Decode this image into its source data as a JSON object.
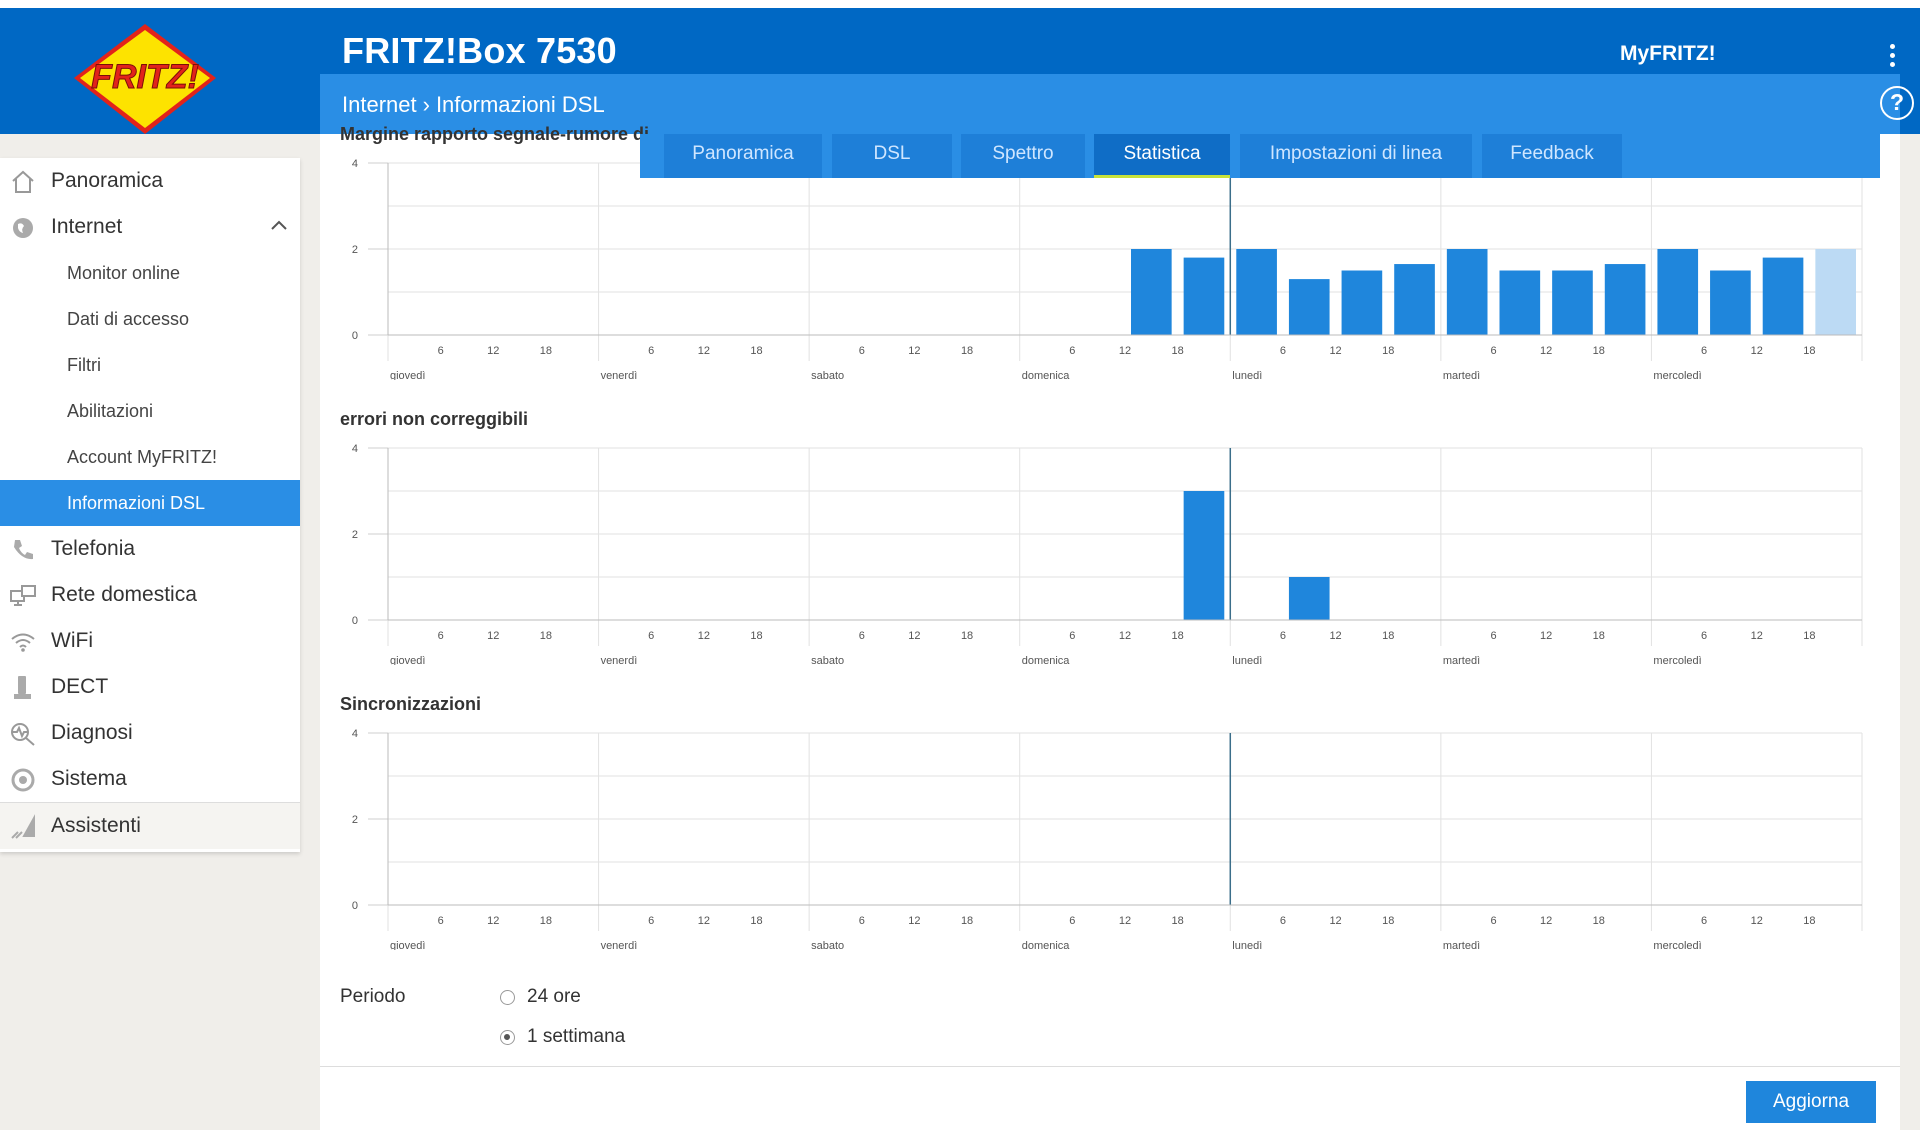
{
  "header": {
    "logo_text": "FRITZ!",
    "product": "FRITZ!Box 7530",
    "myfritz": "MyFRITZ!"
  },
  "breadcrumb": {
    "parent": "Internet",
    "current": "Informazioni DSL"
  },
  "help_label": "?",
  "sidebar": {
    "items": [
      {
        "label": "Panoramica",
        "icon": "home-icon"
      },
      {
        "label": "Internet",
        "icon": "globe-icon",
        "open": true
      },
      {
        "label": "Telefonia",
        "icon": "phone-icon"
      },
      {
        "label": "Rete domestica",
        "icon": "network-icon"
      },
      {
        "label": "WiFi",
        "icon": "wifi-icon"
      },
      {
        "label": "DECT",
        "icon": "dect-icon"
      },
      {
        "label": "Diagnosi",
        "icon": "diagnosis-icon"
      },
      {
        "label": "Sistema",
        "icon": "system-icon"
      },
      {
        "label": "Assistenti",
        "icon": "wizard-icon"
      }
    ],
    "sub_items": [
      "Monitor online",
      "Dati di accesso",
      "Filtri",
      "Abilitazioni",
      "Account MyFRITZ!",
      "Informazioni DSL"
    ],
    "active_sub": "Informazioni DSL"
  },
  "tabs": [
    {
      "label": "Panoramica"
    },
    {
      "label": "DSL"
    },
    {
      "label": "Spettro"
    },
    {
      "label": "Statistica",
      "active": true
    },
    {
      "label": "Impostazioni di linea"
    },
    {
      "label": "Feedback"
    }
  ],
  "chart_data": [
    {
      "type": "bar",
      "title": "Margine rapporto segnale-rumore di",
      "ylim": [
        0,
        4
      ],
      "yticks": [
        0,
        2,
        4
      ],
      "x_hour_ticks": [
        "6",
        "12",
        "18"
      ],
      "days": [
        "giovedì",
        "venerdì",
        "sabato",
        "domenica",
        "lunedì",
        "martedì",
        "mercoledì"
      ],
      "bars": [
        {
          "slot": 14,
          "value": 2,
          "color": "#1f86dc"
        },
        {
          "slot": 15,
          "value": 1.8,
          "color": "#1f86dc"
        },
        {
          "slot": 16,
          "value": 2,
          "color": "#1f86dc"
        },
        {
          "slot": 17,
          "value": 1.3,
          "color": "#1f86dc"
        },
        {
          "slot": 18,
          "value": 1.5,
          "color": "#1f86dc"
        },
        {
          "slot": 19,
          "value": 1.65,
          "color": "#1f86dc"
        },
        {
          "slot": 20,
          "value": 2,
          "color": "#1f86dc"
        },
        {
          "slot": 21,
          "value": 1.5,
          "color": "#1f86dc"
        },
        {
          "slot": 22,
          "value": 1.5,
          "color": "#1f86dc"
        },
        {
          "slot": 23,
          "value": 1.65,
          "color": "#1f86dc"
        },
        {
          "slot": 24,
          "value": 2,
          "color": "#1f86dc"
        },
        {
          "slot": 25,
          "value": 1.5,
          "color": "#1f86dc"
        },
        {
          "slot": 26,
          "value": 1.8,
          "color": "#1f86dc"
        },
        {
          "slot": 27,
          "value": 2,
          "color": "#bcdaf4"
        }
      ]
    },
    {
      "type": "bar",
      "title": "errori non correggibili",
      "ylim": [
        0,
        4
      ],
      "yticks": [
        0,
        2,
        4
      ],
      "x_hour_ticks": [
        "6",
        "12",
        "18"
      ],
      "days": [
        "giovedì",
        "venerdì",
        "sabato",
        "domenica",
        "lunedì",
        "martedì",
        "mercoledì"
      ],
      "bars": [
        {
          "slot": 15,
          "value": 3,
          "color": "#1f86dc"
        },
        {
          "slot": 17,
          "value": 1,
          "color": "#1f86dc"
        }
      ]
    },
    {
      "type": "bar",
      "title": "Sincronizzazioni",
      "ylim": [
        0,
        4
      ],
      "yticks": [
        0,
        2,
        4
      ],
      "x_hour_ticks": [
        "6",
        "12",
        "18"
      ],
      "days": [
        "giovedì",
        "venerdì",
        "sabato",
        "domenica",
        "lunedì",
        "martedì",
        "mercoledì"
      ],
      "bars": []
    }
  ],
  "period": {
    "label": "Periodo",
    "options": [
      "24 ore",
      "1 settimana"
    ],
    "selected": "1 settimana"
  },
  "update_button": "Aggiorna",
  "colors": {
    "brand": "#0068c4",
    "accent": "#2a8ee5",
    "tab_active_underline": "#c8e23a"
  }
}
